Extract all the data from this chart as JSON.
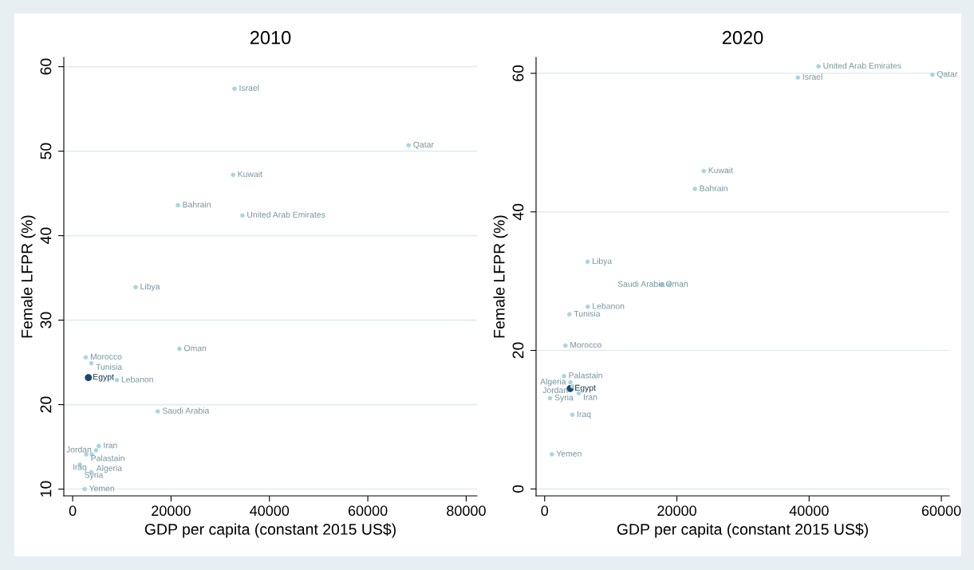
{
  "chart_data": [
    {
      "type": "scatter",
      "title": "2010",
      "xlabel": "GDP per capita (constant 2015 US$)",
      "ylabel": "Female LFPR (%)",
      "xlim": [
        -1800,
        82200
      ],
      "ylim": [
        9.2,
        61.1
      ],
      "xticks": [
        0,
        20000,
        40000,
        60000,
        80000
      ],
      "yticks": [
        10,
        20,
        30,
        40,
        50,
        60
      ],
      "grid": "y",
      "marker": "circle",
      "series": [
        {
          "color": "#a8d5e2",
          "x": [
            32900,
            68300,
            32600,
            21400,
            34500,
            12800,
            21700,
            2650,
            3780,
            8970,
            17290,
            5300,
            4750,
            2760,
            3900,
            1460,
            3780,
            2430
          ],
          "values": [
            57.4,
            50.7,
            47.2,
            43.6,
            42.4,
            33.9,
            26.6,
            25.6,
            24.9,
            22.9,
            19.2,
            15.1,
            14.6,
            14.1,
            14.1,
            12.9,
            12.0,
            10.0
          ],
          "value_labels": [
            "Israel",
            "Qatar",
            "Kuwait",
            "Bahrain",
            "United Arab Emirates",
            "Libya",
            "Oman",
            "Morocco",
            "Tunisia",
            "Lebanon",
            "Saudi Arabia",
            "Iran",
            "Jordan",
            "Palastain",
            "Algeria",
            "Syria",
            "Iraq",
            "Yemen"
          ]
        },
        {
          "color": "#1a476f",
          "x": [
            3190
          ],
          "values": [
            23.2
          ],
          "value_labels": [
            "Egypt"
          ]
        }
      ]
    },
    {
      "type": "scatter",
      "title": "2020",
      "xlabel": "GDP per capita (constant 2015 US$)",
      "ylabel": "Female LFPR (%)",
      "xlim": [
        -1300,
        61200
      ],
      "ylim": [
        -1.0,
        62.3
      ],
      "xticks": [
        0,
        20000,
        40000,
        60000
      ],
      "yticks": [
        0,
        20,
        40,
        60
      ],
      "grid": "y",
      "marker": "circle",
      "series": [
        {
          "color": "#a8d5e2",
          "x": [
            41420,
            38310,
            58640,
            24060,
            22720,
            6500,
            17620,
            18830,
            6520,
            3740,
            3140,
            2930,
            3900,
            4200,
            5150,
            810,
            4190,
            1090
          ],
          "values": [
            61.0,
            59.4,
            59.8,
            45.9,
            43.3,
            32.8,
            29.5,
            29.5,
            26.3,
            25.2,
            20.7,
            16.3,
            15.4,
            14.8,
            13.8,
            13.1,
            10.7,
            5.0
          ],
          "value_labels": [
            "United Arab Emirates",
            "Israel",
            "Qatar",
            "Kuwait",
            "Bahrain",
            "Libya",
            "Oman",
            "Saudi Arabia",
            "Lebanon",
            "Tunisia",
            "Morocco",
            "Palastain",
            "Algeria",
            "Jordan",
            "Iran",
            "Syria",
            "Iraq",
            "Yemen"
          ]
        },
        {
          "color": "#1a476f",
          "x": [
            3860
          ],
          "values": [
            14.5
          ],
          "value_labels": [
            "Egypt"
          ]
        }
      ]
    }
  ]
}
